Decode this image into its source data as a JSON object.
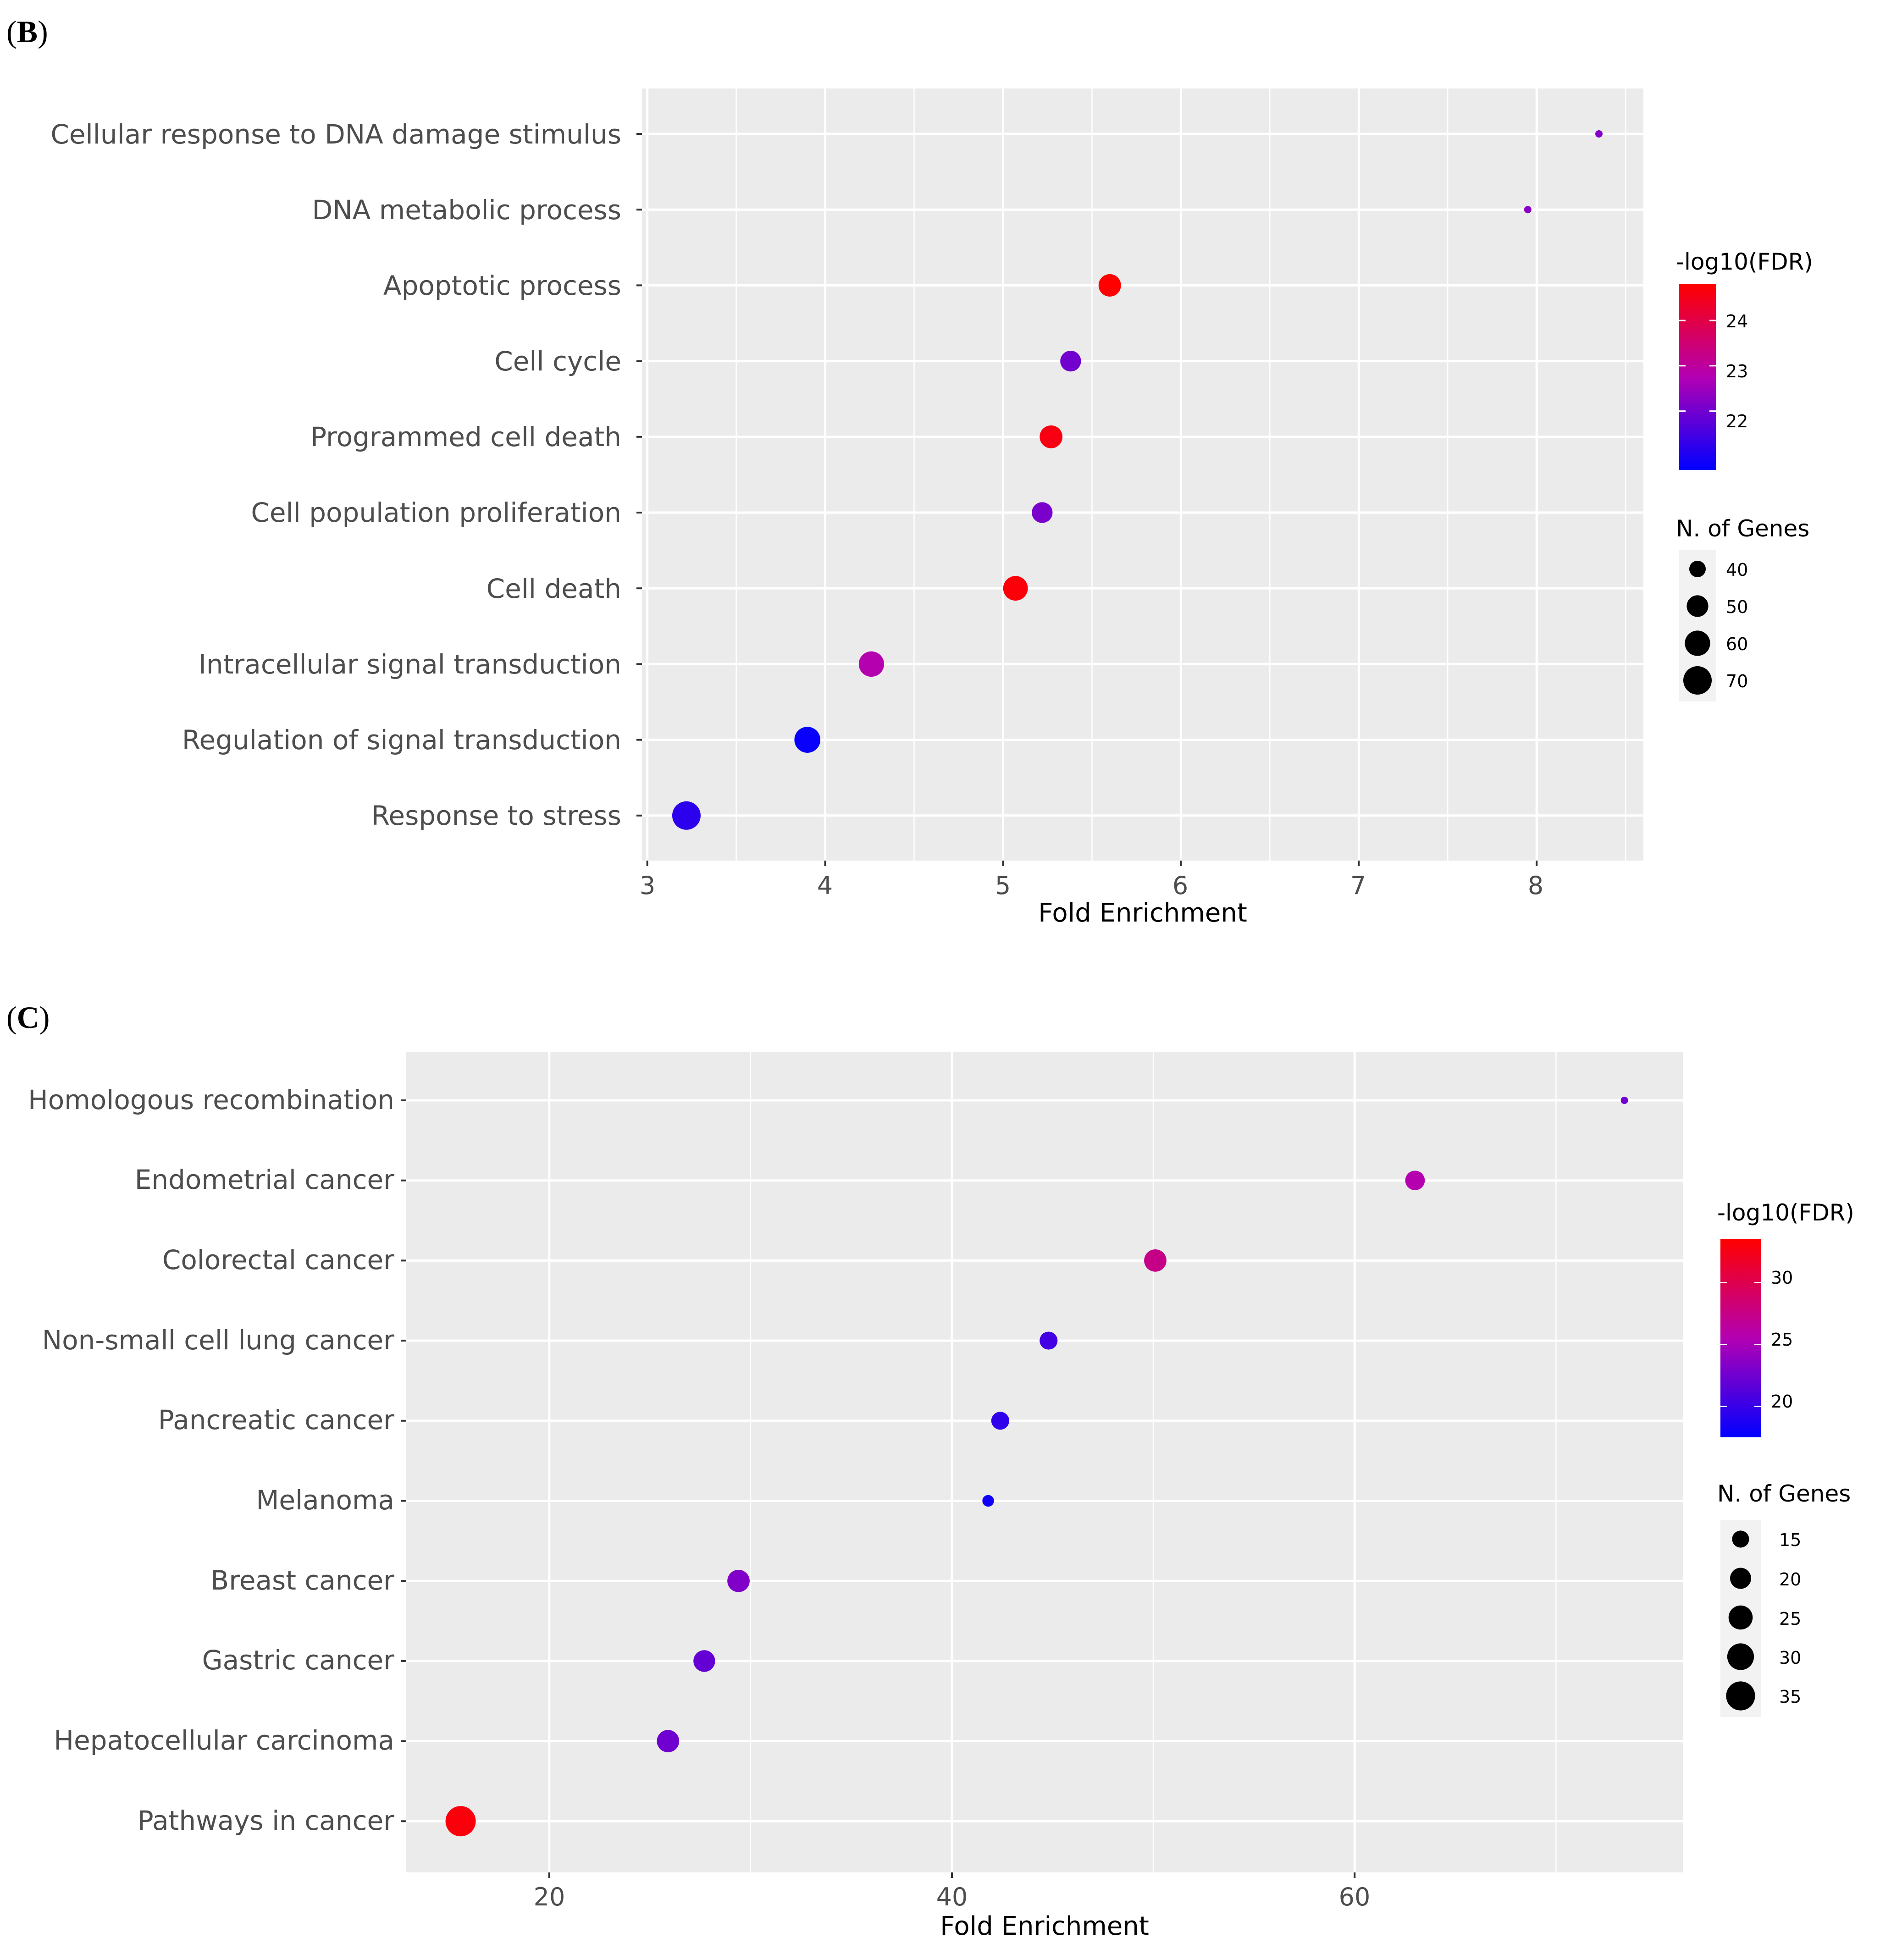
{
  "chart_data": [
    {
      "panel": "(B)",
      "panel_letter": "B",
      "type": "scatter",
      "xlabel": "Fold Enrichment",
      "ylabel": "",
      "xlim": [
        2.97,
        8.6
      ],
      "xticks": [
        3,
        4,
        5,
        6,
        7,
        8
      ],
      "xtick_labels": [
        "3",
        "4",
        "5",
        "6",
        "7",
        "8"
      ],
      "grid": true,
      "categories": [
        "Cellular response to DNA damage stimulus",
        "DNA metabolic process",
        "Apoptotic process",
        "Cell cycle",
        "Programmed cell death",
        "Cell population proliferation",
        "Cell death",
        "Intracellular signal transduction",
        "Regulation of signal transduction",
        "Response to stress"
      ],
      "fold_enrichment": [
        8.35,
        7.95,
        5.6,
        5.38,
        5.27,
        5.22,
        5.07,
        4.26,
        3.9,
        3.22
      ],
      "n_genes": [
        33,
        33,
        52,
        48,
        53,
        48,
        58,
        60,
        62,
        70
      ],
      "neg_log10_fdr": [
        22.2,
        22.3,
        24.8,
        22.0,
        24.6,
        22.1,
        24.7,
        22.8,
        20.8,
        21.2
      ],
      "color_legend": {
        "title": "-log10(FDR)",
        "range": [
          20.7,
          24.8
        ],
        "ticks": [
          22,
          23,
          24
        ],
        "tick_labels": [
          "22",
          "23",
          "24"
        ],
        "low_color": "#0000ff",
        "mid_color": "#b300b3",
        "high_color": "#ff0000"
      },
      "size_legend": {
        "title": "N. of Genes",
        "values": [
          40,
          50,
          60,
          70
        ],
        "labels": [
          "40",
          "50",
          "60",
          "70"
        ]
      }
    },
    {
      "panel": "(C)",
      "panel_letter": "C",
      "type": "scatter",
      "xlabel": "Fold Enrichment",
      "ylabel": "",
      "xlim": [
        12.9,
        76.3
      ],
      "xticks": [
        20,
        40,
        60
      ],
      "xtick_labels": [
        "20",
        "40",
        "60"
      ],
      "grid": true,
      "categories": [
        "Homologous recombination",
        "Endometrial cancer",
        "Colorectal cancer",
        "Non-small cell lung cancer",
        "Pancreatic cancer",
        "Melanoma",
        "Breast cancer",
        "Gastric cancer",
        "Hepatocellular carcinoma",
        "Pathways in cancer"
      ],
      "fold_enrichment": [
        73.4,
        63.0,
        50.1,
        44.8,
        42.4,
        41.8,
        29.4,
        27.7,
        25.9,
        15.6
      ],
      "n_genes": [
        10,
        18,
        22,
        16,
        16,
        11,
        22,
        21,
        22,
        38
      ],
      "neg_log10_fdr": [
        22.5,
        25.7,
        27.5,
        20.5,
        19.7,
        18.2,
        23.2,
        22.0,
        22.5,
        33.0
      ],
      "color_legend": {
        "title": "-log10(FDR)",
        "range": [
          17.5,
          33.5
        ],
        "ticks": [
          20,
          25,
          30
        ],
        "tick_labels": [
          "20",
          "25",
          "30"
        ],
        "low_color": "#0000ff",
        "mid_color": "#b300b3",
        "high_color": "#ff0000"
      },
      "size_legend": {
        "title": "N. of Genes",
        "values": [
          15,
          20,
          25,
          30,
          35
        ],
        "labels": [
          "15",
          "20",
          "25",
          "30",
          "35"
        ]
      }
    }
  ]
}
